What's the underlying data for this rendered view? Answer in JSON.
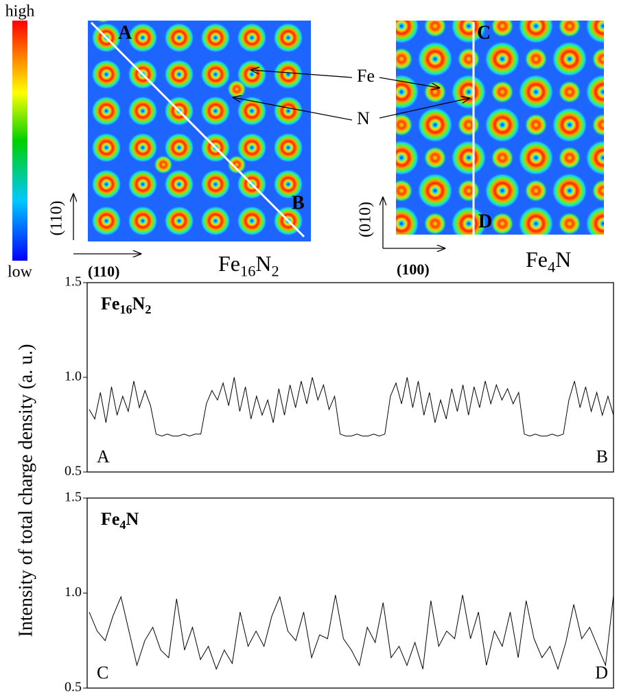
{
  "colorbar": {
    "high": "high",
    "low": "low"
  },
  "annotations": {
    "fe": "Fe",
    "n": "N"
  },
  "maps": [
    {
      "corner_labels": [
        "A",
        "B"
      ],
      "axis_vertical": "(110)",
      "axis_horizontal": "(110)",
      "title": [
        "Fe",
        "16",
        "N",
        "2"
      ]
    },
    {
      "corner_labels": [
        "C",
        "D"
      ],
      "axis_vertical": "(010)",
      "axis_horizontal": "(100)",
      "title": [
        "Fe",
        "4",
        "N"
      ]
    }
  ],
  "y_axis_label": "Intensity of total charge density  (a. u.)",
  "chart_data": [
    {
      "type": "line",
      "title": [
        "Fe",
        "16",
        "N",
        "2"
      ],
      "start_label": "A",
      "end_label": "B",
      "color": "#000000",
      "ylim": [
        0.5,
        1.5
      ],
      "yticks": [
        0.5,
        {
          "value": 1,
          "label": "1.0"
        },
        1.5
      ],
      "values": [
        0.83,
        0.78,
        0.92,
        0.76,
        0.95,
        0.8,
        0.9,
        0.82,
        0.98,
        0.84,
        0.93,
        0.85,
        0.7,
        0.69,
        0.7,
        0.69,
        0.69,
        0.7,
        0.69,
        0.7,
        0.7,
        0.86,
        0.93,
        0.88,
        0.97,
        0.85,
        1.0,
        0.82,
        0.95,
        0.78,
        0.9,
        0.8,
        0.88,
        0.76,
        0.94,
        0.8,
        0.96,
        0.84,
        0.98,
        0.86,
        1.0,
        0.88,
        0.96,
        0.83,
        0.9,
        0.7,
        0.69,
        0.69,
        0.7,
        0.69,
        0.69,
        0.7,
        0.69,
        0.7,
        0.9,
        0.97,
        0.86,
        1.0,
        0.84,
        0.98,
        0.8,
        0.92,
        0.76,
        0.88,
        0.78,
        0.94,
        0.82,
        0.96,
        0.8,
        0.95,
        0.84,
        0.98,
        0.86,
        0.96,
        0.88,
        0.94,
        0.86,
        0.92,
        0.7,
        0.69,
        0.7,
        0.69,
        0.69,
        0.7,
        0.69,
        0.7,
        0.88,
        0.98,
        0.84,
        0.95,
        0.82,
        0.92,
        0.8,
        0.9,
        0.8
      ]
    },
    {
      "type": "line",
      "title": [
        "Fe",
        "4",
        "N"
      ],
      "start_label": "C",
      "end_label": "D",
      "color": "#000000",
      "ylim": [
        0.5,
        1.5
      ],
      "yticks": [
        0.5,
        {
          "value": 1,
          "label": "1.0"
        },
        1.5
      ],
      "values": [
        0.9,
        0.8,
        0.75,
        0.88,
        0.98,
        0.8,
        0.62,
        0.75,
        0.82,
        0.7,
        0.66,
        0.97,
        0.7,
        0.82,
        0.65,
        0.72,
        0.6,
        0.7,
        0.63,
        0.9,
        0.72,
        0.8,
        0.72,
        0.88,
        0.98,
        0.8,
        0.75,
        0.9,
        0.66,
        0.78,
        0.76,
        0.99,
        0.76,
        0.7,
        0.62,
        0.82,
        0.74,
        0.95,
        0.66,
        0.72,
        0.62,
        0.74,
        0.6,
        0.96,
        0.72,
        0.8,
        0.76,
        0.99,
        0.76,
        0.9,
        0.62,
        0.8,
        0.72,
        0.9,
        0.66,
        0.96,
        0.76,
        0.66,
        0.72,
        0.6,
        0.74,
        0.94,
        0.76,
        0.82,
        0.72,
        0.62,
        0.99
      ]
    }
  ]
}
